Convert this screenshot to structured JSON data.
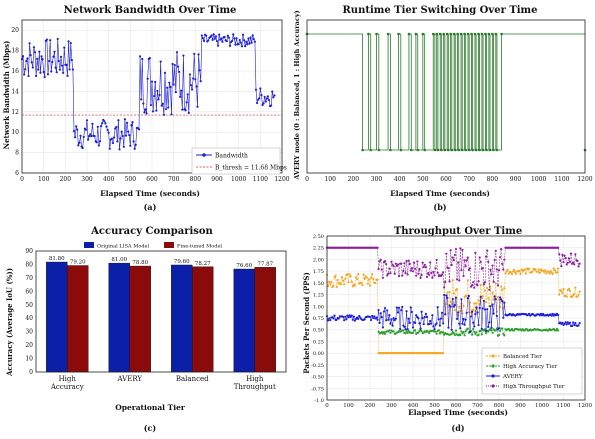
{
  "chart_data": [
    {
      "type": "line",
      "label": "(a)",
      "title": "Network Bandwidth Over Time",
      "xlabel": "Elapsed Time (seconds)",
      "ylabel": "Network Bandwidth (Mbps)",
      "xlim": [
        0,
        1200
      ],
      "ylim": [
        6,
        21
      ],
      "xticks": [
        "0",
        "100",
        "200",
        "300",
        "400",
        "500",
        "600",
        "700",
        "800",
        "900",
        "1000",
        "1100",
        "1200"
      ],
      "yticks": [
        "6",
        "8",
        "10",
        "12",
        "14",
        "16",
        "18",
        "20"
      ],
      "grid": true,
      "legend_position": "lower-right",
      "segments": [
        {
          "x0": 0,
          "x1": 240,
          "mean": 17.2,
          "amp": 2.0
        },
        {
          "x0": 240,
          "x1": 545,
          "mean": 9.8,
          "amp": 1.5
        },
        {
          "x0": 545,
          "x1": 830,
          "mean": 15.0,
          "amp": 3.3
        },
        {
          "x0": 830,
          "x1": 1080,
          "mean": 19.0,
          "amp": 0.6
        },
        {
          "x0": 1080,
          "x1": 1170,
          "mean": 13.5,
          "amp": 1.0
        }
      ],
      "series": [
        {
          "name": "Bandwidth",
          "color": "#1f1fd6",
          "style": "line+marker"
        },
        {
          "name": "B_thresh = 11.68 Mbps",
          "value": 11.68,
          "color": "#d62728",
          "style": "dashed"
        }
      ]
    },
    {
      "type": "line",
      "label": "(b)",
      "title": "Runtime Tier Switching Over Time",
      "xlabel": "Elapsed Time (seconds)",
      "ylabel": "AVERY mode (0 : Balanced, 1 : High Accuracy)",
      "xlim": [
        0,
        1200
      ],
      "ylim": [
        0,
        1
      ],
      "xticks": [
        "0",
        "100",
        "200",
        "300",
        "400",
        "500",
        "600",
        "700",
        "800",
        "900",
        "1000",
        "1100",
        "1200"
      ],
      "grid": false,
      "series": [
        {
          "name": "AVERY mode",
          "color": "#2a7a2a",
          "one_intervals": [
            [
              0,
              240
            ],
            [
              265,
              275
            ],
            [
              300,
              310
            ],
            [
              350,
              360
            ],
            [
              395,
              405
            ],
            [
              440,
              450
            ],
            [
              470,
              478
            ],
            [
              500,
              508
            ],
            [
              545,
              552
            ],
            [
              560,
              565
            ],
            [
              575,
              580
            ],
            [
              590,
              595
            ],
            [
              605,
              610
            ],
            [
              620,
              625
            ],
            [
              635,
              640
            ],
            [
              650,
              655
            ],
            [
              665,
              670
            ],
            [
              680,
              685
            ],
            [
              695,
              700
            ],
            [
              710,
              715
            ],
            [
              725,
              730
            ],
            [
              740,
              745
            ],
            [
              755,
              760
            ],
            [
              770,
              775
            ],
            [
              785,
              790
            ],
            [
              800,
              805
            ],
            [
              815,
              820
            ],
            [
              840,
              1200
            ]
          ]
        }
      ]
    },
    {
      "type": "bar",
      "label": "(c)",
      "title": "Accuracy Comparison",
      "xlabel": "Operational Tier",
      "ylabel": "Accuracy (Average IoU (%))",
      "ylim": [
        0,
        90
      ],
      "yticks": [
        "0",
        "10",
        "20",
        "30",
        "40",
        "50",
        "60",
        "70",
        "80",
        "90"
      ],
      "categories": [
        "High Accuracy",
        "AVERY",
        "Balanced",
        "High Throughput"
      ],
      "legend_position": "top",
      "series": [
        {
          "name": "Original LISA Model",
          "color": "#0b1fa8",
          "values": [
            81.8,
            81.0,
            79.6,
            76.6
          ]
        },
        {
          "name": "Fine-tuned Model",
          "color": "#8b0a0a",
          "values": [
            79.2,
            78.8,
            78.27,
            77.87
          ]
        }
      ],
      "value_labels": [
        [
          "81.80",
          "79.20"
        ],
        [
          "81.00",
          "78.80"
        ],
        [
          "79.60",
          "78.27"
        ],
        [
          "76.60",
          "77.87"
        ]
      ]
    },
    {
      "type": "scatter",
      "label": "(d)",
      "title": "Throughput Over Time",
      "xlabel": "Elapsed Time (seconds)",
      "ylabel": "Packets Per Second (PPS)",
      "xlim": [
        0,
        1200
      ],
      "ylim": [
        -1.0,
        2.5
      ],
      "xticks": [
        "0",
        "100",
        "200",
        "300",
        "400",
        "500",
        "600",
        "700",
        "800",
        "900",
        "1000",
        "1100",
        "1200"
      ],
      "yticks": [
        "-1.0",
        "-0.75",
        "-0.50",
        "-0.25",
        "0.00",
        "0.25",
        "0.50",
        "0.75",
        "1.00",
        "1.25",
        "1.50",
        "1.75",
        "2.00",
        "2.25",
        "2.50"
      ],
      "grid": true,
      "legend_position": "lower-right",
      "series": [
        {
          "name": "Balanced Tier",
          "color": "#f5a623",
          "segments": [
            {
              "x0": 0,
              "x1": 240,
              "mean": 1.55,
              "amp": 0.15
            },
            {
              "x0": 240,
              "x1": 545,
              "mean": 0.0,
              "amp": 0
            },
            {
              "x0": 545,
              "x1": 830,
              "mean": 1.2,
              "amp": 0.4
            },
            {
              "x0": 830,
              "x1": 1080,
              "mean": 1.75,
              "amp": 0.06
            },
            {
              "x0": 1080,
              "x1": 1180,
              "mean": 1.3,
              "amp": 0.1
            }
          ]
        },
        {
          "name": "High Accuracy Tier",
          "color": "#2ca02c",
          "segments": [
            {
              "x0": 240,
              "x1": 545,
              "mean": 0.45,
              "amp": 0.04
            },
            {
              "x0": 545,
              "x1": 830,
              "mean": 0.45,
              "amp": 0.08
            },
            {
              "x0": 830,
              "x1": 1080,
              "mean": 0.5,
              "amp": 0.02
            }
          ]
        },
        {
          "name": "AVERY",
          "color": "#1f1fd6",
          "segments": [
            {
              "x0": 0,
              "x1": 240,
              "mean": 0.75,
              "amp": 0.06
            },
            {
              "x0": 240,
              "x1": 545,
              "mean": 0.75,
              "amp": 0.25
            },
            {
              "x0": 545,
              "x1": 830,
              "mean": 0.85,
              "amp": 0.4
            },
            {
              "x0": 830,
              "x1": 1080,
              "mean": 0.82,
              "amp": 0.02
            },
            {
              "x0": 1080,
              "x1": 1180,
              "mean": 0.62,
              "amp": 0.04
            }
          ]
        },
        {
          "name": "High Throughput Tier",
          "color": "#8e1f9e",
          "segments": [
            {
              "x0": 0,
              "x1": 240,
              "mean": 2.25,
              "amp": 0.0
            },
            {
              "x0": 240,
              "x1": 545,
              "mean": 1.8,
              "amp": 0.2
            },
            {
              "x0": 545,
              "x1": 830,
              "mean": 1.8,
              "amp": 0.45
            },
            {
              "x0": 830,
              "x1": 1080,
              "mean": 2.25,
              "amp": 0.0
            },
            {
              "x0": 1080,
              "x1": 1180,
              "mean": 2.0,
              "amp": 0.15
            }
          ]
        }
      ]
    }
  ]
}
